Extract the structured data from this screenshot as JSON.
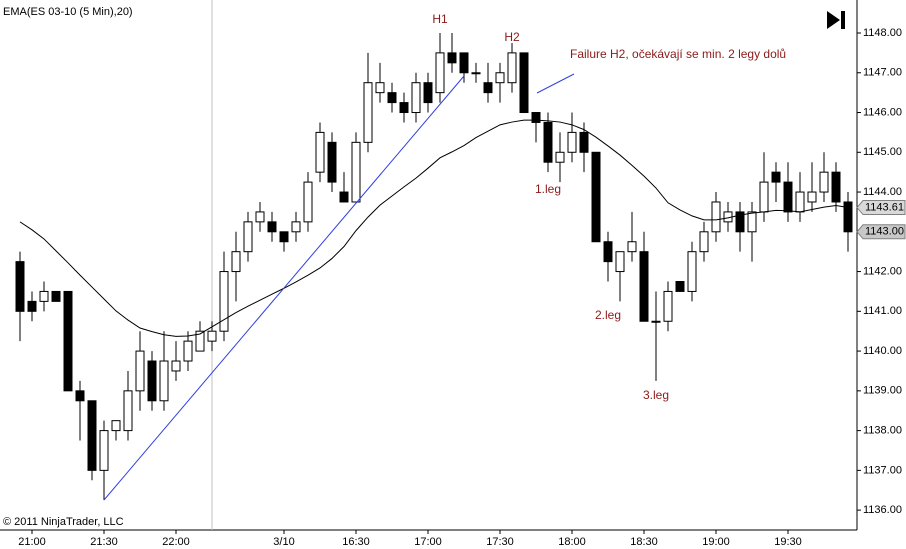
{
  "chart_data": {
    "type": "candlestick",
    "title": "EMA(ES 03-10 (5 Min),20)",
    "copyright": "© 2011 NinjaTrader, LLC",
    "up_color": "#ffffff",
    "down_color": "#000000",
    "ylim": [
      1135.5,
      1148.83
    ],
    "yticks": [
      {
        "value": 1136,
        "label": "1136.00"
      },
      {
        "value": 1137,
        "label": "1137.00"
      },
      {
        "value": 1138,
        "label": "1138.00"
      },
      {
        "value": 1139,
        "label": "1139.00"
      },
      {
        "value": 1140,
        "label": "1140.00"
      },
      {
        "value": 1141,
        "label": "1141.00"
      },
      {
        "value": 1142,
        "label": "1142.00"
      },
      {
        "value": 1143,
        "label": "1143.00"
      },
      {
        "value": 1144,
        "label": "1144.00"
      },
      {
        "value": 1145,
        "label": "1145.00"
      },
      {
        "value": 1146,
        "label": "1146.00"
      },
      {
        "value": 1147,
        "label": "1147.00"
      },
      {
        "value": 1148,
        "label": "1148.00"
      }
    ],
    "categories": [
      null,
      "21:00",
      null,
      null,
      null,
      null,
      null,
      "21:30",
      null,
      null,
      null,
      null,
      null,
      "22:00",
      null,
      null,
      null,
      null,
      null,
      null,
      null,
      null,
      "3/10",
      null,
      null,
      null,
      null,
      null,
      "16:30",
      null,
      null,
      null,
      null,
      null,
      "17:00",
      null,
      null,
      null,
      null,
      null,
      "17:30",
      null,
      null,
      null,
      null,
      null,
      "18:00",
      null,
      null,
      null,
      null,
      null,
      "18:30",
      null,
      null,
      null,
      null,
      null,
      "19:00",
      null,
      null,
      null,
      null,
      null,
      "19:30",
      null,
      null,
      null,
      null,
      null
    ],
    "open": [
      1142.25,
      1141.25,
      1141.25,
      1141.5,
      1141.5,
      1139.0,
      1138.75,
      1137.0,
      1138.0,
      1138.0,
      1139.0,
      1139.75,
      1138.75,
      1139.5,
      1139.75,
      1140.0,
      1140.25,
      1140.5,
      1142.0,
      1142.5,
      1143.25,
      1143.25,
      1143.0,
      1143.0,
      1143.25,
      1144.5,
      1145.25,
      1144.0,
      1143.75,
      1145.25,
      1146.5,
      1146.5,
      1146.25,
      1146.0,
      1146.75,
      1146.5,
      1147.5,
      1147.5,
      1147.0,
      1146.75,
      1146.75,
      1146.75,
      1147.5,
      1146.0,
      1145.75,
      1144.75,
      1145.0,
      1145.5,
      1145.0,
      1142.75,
      1142.0,
      1142.5,
      1142.5,
      1140.75,
      1140.75,
      1141.75,
      1141.5,
      1142.5,
      1143.0,
      1143.25,
      1143.5,
      1143.0,
      1143.5,
      1144.5,
      1144.25,
      1143.5,
      1143.75,
      1144.0,
      1144.5,
      1143.75
    ],
    "high": [
      1142.5,
      1141.5,
      1141.75,
      1141.5,
      1141.5,
      1139.25,
      1138.75,
      1138.25,
      1138.25,
      1139.5,
      1140.5,
      1140.0,
      1140.5,
      1140.25,
      1140.5,
      1140.75,
      1140.75,
      1142.5,
      1143.0,
      1143.5,
      1143.75,
      1143.5,
      1143.0,
      1143.5,
      1144.5,
      1145.75,
      1145.5,
      1144.5,
      1145.5,
      1147.5,
      1147.25,
      1146.75,
      1146.5,
      1147.0,
      1147.0,
      1148.0,
      1148.0,
      1147.5,
      1147.25,
      1147.25,
      1147.25,
      1147.75,
      1147.5,
      1146.0,
      1146.0,
      1145.5,
      1146.0,
      1145.75,
      1145.0,
      1143.0,
      1142.5,
      1143.5,
      1143.0,
      1141.5,
      1141.75,
      1141.75,
      1142.75,
      1143.25,
      1144.0,
      1143.75,
      1143.75,
      1143.75,
      1145.0,
      1144.75,
      1144.75,
      1144.5,
      1144.75,
      1145.0,
      1144.75,
      1144.0
    ],
    "low": [
      1140.25,
      1140.75,
      1141.0,
      1141.25,
      1139.0,
      1137.75,
      1136.75,
      1136.25,
      1137.75,
      1137.75,
      1138.5,
      1138.5,
      1138.5,
      1139.25,
      1139.5,
      1140.0,
      1140.0,
      1140.25,
      1141.25,
      1142.25,
      1143.0,
      1142.75,
      1142.5,
      1142.75,
      1143.0,
      1144.25,
      1144.0,
      1143.75,
      1143.75,
      1145.0,
      1146.25,
      1146.0,
      1145.75,
      1145.75,
      1146.0,
      1146.25,
      1147.0,
      1146.75,
      1146.75,
      1146.25,
      1146.25,
      1146.5,
      1146.0,
      1145.25,
      1144.5,
      1144.25,
      1144.75,
      1144.5,
      1142.75,
      1141.75,
      1141.25,
      1142.25,
      1140.75,
      1139.25,
      1140.5,
      1141.5,
      1141.25,
      1142.25,
      1142.75,
      1143.0,
      1142.5,
      1142.25,
      1143.25,
      1143.75,
      1143.25,
      1143.25,
      1143.5,
      1143.75,
      1143.5,
      1142.5
    ],
    "close": [
      1141.0,
      1141.0,
      1141.5,
      1141.25,
      1139.0,
      1138.75,
      1137.0,
      1138.0,
      1138.25,
      1139.0,
      1140.0,
      1138.75,
      1139.75,
      1139.75,
      1140.25,
      1140.5,
      1140.5,
      1142.0,
      1142.5,
      1143.25,
      1143.5,
      1143.0,
      1142.75,
      1143.25,
      1144.25,
      1145.5,
      1144.25,
      1143.75,
      1145.25,
      1146.75,
      1146.75,
      1146.25,
      1146.0,
      1146.75,
      1146.25,
      1147.5,
      1147.25,
      1147.0,
      1147.0,
      1146.5,
      1147.0,
      1147.5,
      1146.0,
      1145.75,
      1144.75,
      1145.0,
      1145.5,
      1145.0,
      1142.75,
      1142.25,
      1142.5,
      1142.75,
      1140.75,
      1140.75,
      1141.5,
      1141.5,
      1142.5,
      1143.0,
      1143.75,
      1143.5,
      1143.0,
      1143.5,
      1144.25,
      1144.25,
      1143.5,
      1144.0,
      1144.0,
      1144.5,
      1143.75,
      1143.0
    ],
    "ema": {
      "color": "#000000",
      "values": [
        1143.25,
        1143.05,
        1142.82,
        1142.52,
        1142.22,
        1141.91,
        1141.61,
        1141.31,
        1141.01,
        1140.78,
        1140.58,
        1140.49,
        1140.41,
        1140.37,
        1140.38,
        1140.43,
        1140.61,
        1140.79,
        1140.97,
        1141.13,
        1141.28,
        1141.43,
        1141.58,
        1141.74,
        1141.91,
        1142.09,
        1142.33,
        1142.63,
        1143.03,
        1143.37,
        1143.67,
        1143.9,
        1144.13,
        1144.35,
        1144.6,
        1144.86,
        1145.01,
        1145.17,
        1145.37,
        1145.53,
        1145.69,
        1145.76,
        1145.81,
        1145.81,
        1145.79,
        1145.76,
        1145.69,
        1145.57,
        1145.38,
        1145.16,
        1144.93,
        1144.67,
        1144.4,
        1144.1,
        1143.73,
        1143.55,
        1143.4,
        1143.3,
        1143.3,
        1143.35,
        1143.42,
        1143.47,
        1143.5,
        1143.54,
        1143.53,
        1143.5,
        1143.56,
        1143.62,
        1143.66,
        1143.61
      ]
    },
    "price_markers": [
      {
        "value": 1143.61,
        "label": "1143.61",
        "color": "#d9d9d9"
      },
      {
        "value": 1143.0,
        "label": "1143.00",
        "color": "#c8c8c8"
      }
    ],
    "annotations": {
      "h1": "H1",
      "h2": "H2",
      "failure": "Failure H2, očekávají se min. 2 legy dolů",
      "leg1": "1.leg",
      "leg2": "2.leg",
      "leg3": "3.leg"
    }
  }
}
